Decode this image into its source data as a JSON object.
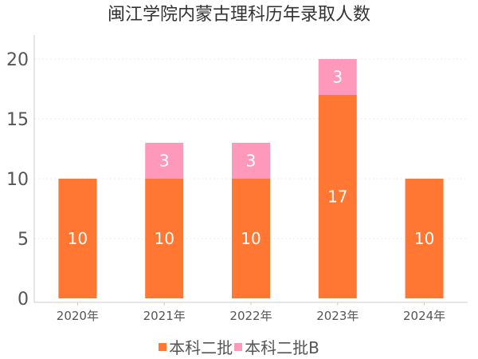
{
  "chart_data": {
    "type": "bar",
    "stacked": true,
    "title": "闽江学院内蒙古理科历年录取人数",
    "categories": [
      "2020年",
      "2021年",
      "2022年",
      "2023年",
      "2024年"
    ],
    "series": [
      {
        "name": "本科二批",
        "color": "#ff7733",
        "values": [
          10,
          10,
          10,
          17,
          10
        ]
      },
      {
        "name": "本科二批B",
        "color": "#ff99bb",
        "values": [
          null,
          3,
          3,
          3,
          null
        ]
      }
    ],
    "yticks": [
      0,
      5,
      10,
      15,
      20
    ],
    "ylim": [
      0,
      20
    ],
    "grid": true,
    "legend_position": "bottom",
    "data_labels": true
  }
}
